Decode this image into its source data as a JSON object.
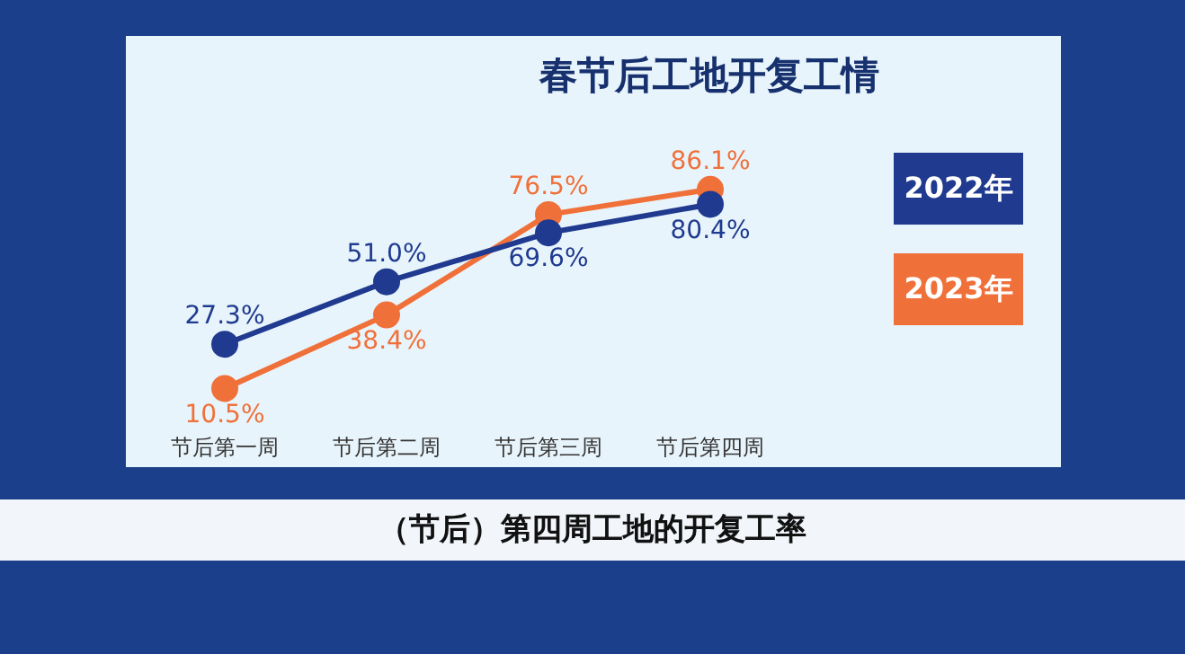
{
  "chart_data": {
    "type": "line",
    "title": "春节后工地开复工情",
    "categories": [
      "节后第一周",
      "节后第二周",
      "节后第三周",
      "节后第四周"
    ],
    "series": [
      {
        "name": "2022年",
        "color": "#1f3a8f",
        "values": [
          27.3,
          51.0,
          69.6,
          80.4
        ],
        "value_labels": [
          "27.3%",
          "51.0%",
          "69.6%",
          "80.4%"
        ]
      },
      {
        "name": "2023年",
        "color": "#f0703a",
        "values": [
          10.5,
          38.4,
          76.5,
          86.1
        ],
        "value_labels": [
          "10.5%",
          "38.4%",
          "76.5%",
          "86.1%"
        ]
      }
    ],
    "legend": "right",
    "marker": "circle",
    "line_style": "solid",
    "grid": false,
    "annotations": [
      "（节后）第四周工地的开复工率"
    ]
  }
}
